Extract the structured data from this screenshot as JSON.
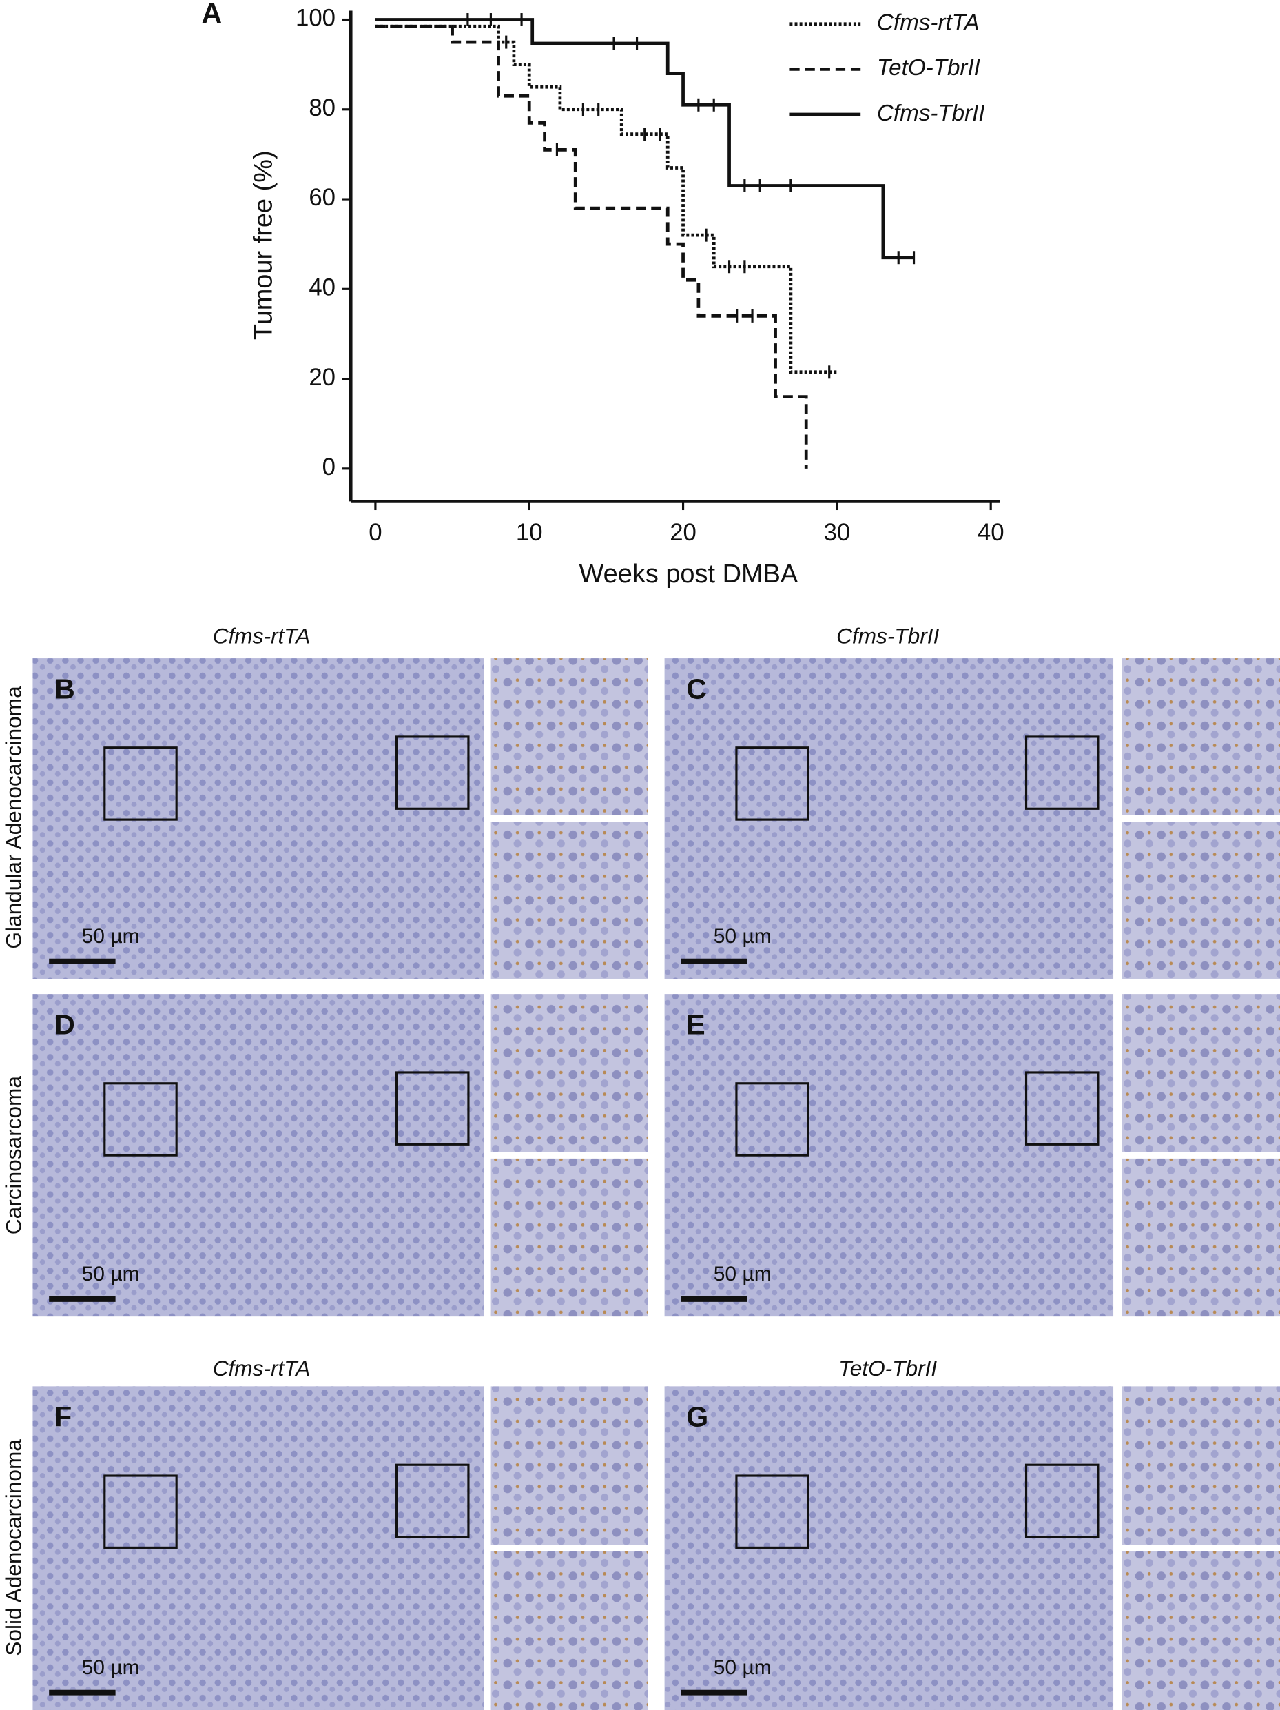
{
  "chart_data": {
    "type": "line",
    "ylabel": "Tumour free (%)",
    "xlabel": "Weeks post DMBA",
    "panel_letter": "A",
    "xlim": [
      -1.6,
      40.6
    ],
    "ylim": [
      -7.3,
      102
    ],
    "xticks": [
      0,
      10,
      20,
      30,
      40
    ],
    "yticks": [
      0,
      20,
      40,
      60,
      80,
      100
    ],
    "legend": "upper right",
    "series": [
      {
        "name": "Cfms-rtTA",
        "color": "#111111",
        "style": "dotted",
        "x": [
          0,
          8,
          8,
          9,
          9,
          10,
          10,
          12,
          12,
          16,
          16,
          19,
          19,
          20,
          20,
          22,
          22,
          27,
          27,
          30
        ],
        "values": [
          98.5,
          98.5,
          95,
          95,
          90,
          90,
          85,
          85,
          80,
          80,
          74.5,
          74.5,
          67,
          67,
          52,
          52,
          45,
          45,
          21.5,
          21.5
        ],
        "censor_x": [
          13.5,
          14.5,
          17.5,
          18.5,
          21.5,
          23,
          24,
          29.5
        ],
        "censor_values": [
          80,
          80,
          74.5,
          74.5,
          52,
          45,
          45,
          21.5
        ]
      },
      {
        "name": "TetO-TbrII",
        "color": "#111111",
        "style": "dashed",
        "x": [
          0,
          5,
          5,
          8,
          8,
          10,
          10,
          11,
          11,
          13,
          13,
          19,
          19,
          20,
          20,
          21,
          21,
          26,
          26,
          28,
          28
        ],
        "values": [
          98.5,
          98.5,
          95,
          95,
          83,
          83,
          77,
          77,
          71,
          71,
          58,
          58,
          50,
          50,
          42,
          42,
          34,
          34,
          16,
          16,
          0
        ],
        "censor_x": [
          8.5,
          11.8,
          23.5,
          24.5
        ],
        "censor_values": [
          95,
          71,
          34,
          34
        ]
      },
      {
        "name": "Cfms-TbrII",
        "color": "#111111",
        "style": "solid",
        "x": [
          0,
          10.2,
          10.2,
          19,
          19,
          20,
          20,
          23,
          23,
          33,
          33,
          35
        ],
        "values": [
          100,
          100,
          94.7,
          94.7,
          88,
          88,
          81,
          81,
          63,
          63,
          47,
          47
        ],
        "censor_x": [
          6,
          7.5,
          9.5,
          15.5,
          17,
          21,
          22,
          24,
          25,
          27,
          34,
          35
        ],
        "censor_values": [
          100,
          100,
          100,
          94.7,
          94.7,
          81,
          81,
          63,
          63,
          63,
          47,
          47
        ]
      }
    ]
  },
  "figure": {
    "column_titles": [
      "Cfms-rtTA",
      "Cfms-TbrII",
      "Cfms-rtTA",
      "TetO-TbrII"
    ],
    "row_labels": [
      "Glandular Adenocarcinoma",
      "Carcinosarcoma",
      "Solid Adenocarcinoma"
    ],
    "panels": [
      {
        "letter": "B",
        "scale": "50 µm"
      },
      {
        "letter": "C",
        "scale": "50 µm"
      },
      {
        "letter": "D",
        "scale": "50 µm"
      },
      {
        "letter": "E",
        "scale": "50 µm"
      },
      {
        "letter": "F",
        "scale": "50 µm"
      },
      {
        "letter": "G",
        "scale": "50 µm"
      }
    ]
  }
}
